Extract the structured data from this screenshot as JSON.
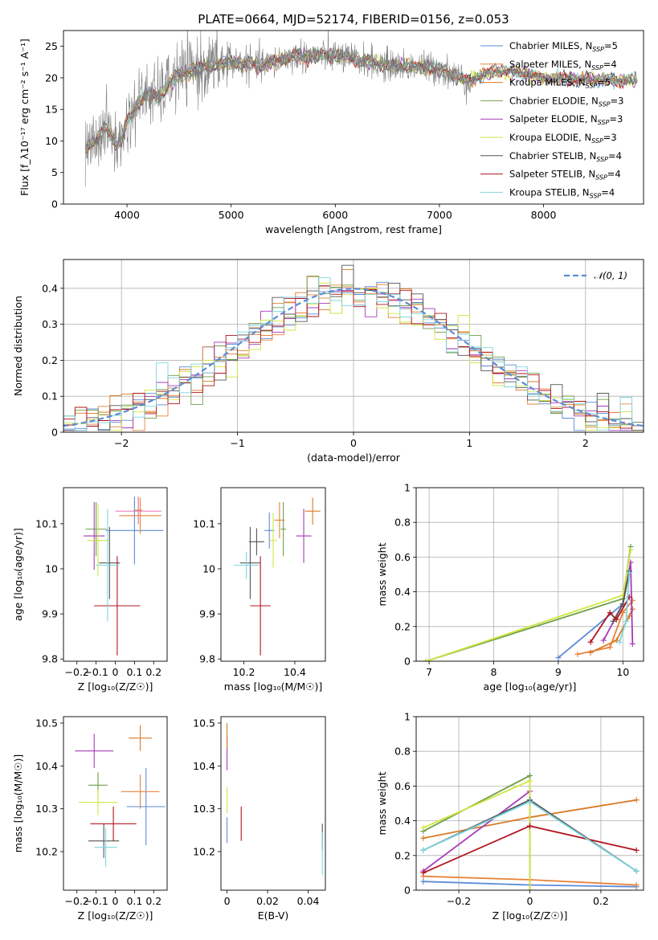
{
  "figure_title": "PLATE=0664, MJD=52174, FIBERID=0156, z=0.053",
  "colors": {
    "Chabrier MILES": "#5b8bd6",
    "Salpeter MILES": "#e8823a",
    "Kroupa MILES": "#d97a24",
    "Chabrier ELODIE": "#6f9e4a",
    "Salpeter ELODIE": "#a83ab8",
    "Kroupa ELODIE": "#cfe63f",
    "Chabrier STELIB": "#555555",
    "Salpeter STELIB": "#b0161e",
    "Kroupa STELIB": "#7fd6e0"
  },
  "chart_data": [
    {
      "id": "spectrum",
      "type": "line",
      "xlabel": "wavelength [Angstrom, rest frame]",
      "ylabel": "Flux [f_λ10⁻¹⁷ erg cm⁻² s⁻¹ A⁻¹]",
      "xlim": [
        3390,
        8960
      ],
      "ylim": [
        0,
        27.5
      ],
      "xticks": [
        4000,
        5000,
        6000,
        7000,
        8000
      ],
      "yticks": [
        0,
        5,
        10,
        15,
        20,
        25
      ],
      "legend_position": "upper right",
      "legend": [
        {
          "name": "Chabrier MILES",
          "nssp": "5"
        },
        {
          "name": "Salpeter MILES",
          "nssp": "4"
        },
        {
          "name": "Kroupa MILES",
          "nssp": "5"
        },
        {
          "name": "Chabrier ELODIE",
          "nssp": "3"
        },
        {
          "name": "Salpeter ELODIE",
          "nssp": "3"
        },
        {
          "name": "Kroupa ELODIE",
          "nssp": "3"
        },
        {
          "name": "Chabrier STELIB",
          "nssp": "4"
        },
        {
          "name": "Salpeter STELIB",
          "nssp": "4"
        },
        {
          "name": "Kroupa STELIB",
          "nssp": "4"
        }
      ],
      "continuum": {
        "wavelength": [
          3600,
          3700,
          3800,
          3900,
          3950,
          4000,
          4100,
          4200,
          4300,
          4400,
          4500,
          4700,
          5000,
          5300,
          5600,
          6000,
          6500,
          7000,
          7200,
          7300,
          7500,
          7700,
          8000,
          8300,
          8600,
          8900
        ],
        "flux": [
          9,
          10,
          12,
          9.5,
          10,
          13,
          16,
          17.5,
          17,
          19,
          20.5,
          21.5,
          22.5,
          22,
          23.5,
          23.5,
          22,
          21.5,
          20,
          19.5,
          21,
          21,
          20,
          19.8,
          19.7,
          19.5
        ]
      }
    },
    {
      "id": "residuals",
      "type": "histogram",
      "xlabel": "(data-model)/error",
      "ylabel": "Normed distribution",
      "xlim": [
        -2.5,
        2.5
      ],
      "ylim": [
        0,
        0.48
      ],
      "xticks": [
        -2,
        -1,
        0,
        1,
        2
      ],
      "yticks": [
        0.0,
        0.1,
        0.2,
        0.3,
        0.4
      ],
      "bin_width": 0.1,
      "grid": true,
      "legend_position": "upper right",
      "reference_curve": {
        "name": "𝒩(0, 1)",
        "mean": 0,
        "sigma": 1
      }
    },
    {
      "id": "age_vs_Z",
      "type": "errorbar",
      "xlabel": "Z [log₁₀(Z/Z☉)]",
      "ylabel": "age  [log₁₀(age/yr)]",
      "xlim": [
        -0.27,
        0.27
      ],
      "ylim": [
        9.795,
        10.18
      ],
      "xticks": [
        -0.2,
        -0.1,
        0.0,
        0.1,
        0.2
      ],
      "yticks": [
        9.8,
        9.9,
        10.0,
        10.1
      ],
      "points": [
        {
          "series": "Chabrier MILES",
          "x": 0.1,
          "xerr": 0.15,
          "y": 10.085,
          "yerr": 0.075
        },
        {
          "series": "Salpeter MILES",
          "x": 0.13,
          "xerr": 0.11,
          "y": 10.118,
          "yerr": 0.04
        },
        {
          "series": "Kroupa MILES",
          "x": 0.12,
          "xerr": 0.02,
          "y": 10.13,
          "yerr": 0.03
        },
        {
          "series": "Chabrier ELODIE",
          "x": -0.1,
          "xerr": 0.055,
          "y": 10.088,
          "yerr": 0.06
        },
        {
          "series": "Salpeter ELODIE",
          "x": -0.11,
          "xerr": 0.055,
          "y": 10.073,
          "yerr": 0.075
        },
        {
          "series": "Kroupa ELODIE",
          "x": -0.09,
          "xerr": 0.055,
          "y": 10.063,
          "yerr": 0.08
        },
        {
          "series": "Chabrier STELIB",
          "x": -0.03,
          "xerr": 0.055,
          "y": 10.013,
          "yerr": 0.08
        },
        {
          "series": "Salpeter STELIB",
          "x": 0.01,
          "xerr": 0.12,
          "y": 9.918,
          "yerr": 0.11
        },
        {
          "series": "Kroupa STELIB",
          "x": -0.04,
          "xerr": 0.06,
          "y": 10.008,
          "yerr": 0.125
        },
        {
          "series": "Kroupa MILES pink",
          "x": 0.12,
          "xerr": 0.12,
          "y": 10.128,
          "yerr": 0.03
        }
      ]
    },
    {
      "id": "age_vs_mass",
      "type": "errorbar",
      "xlabel": "mass [log₁₀(M/M☉)]",
      "ylabel": "",
      "xlim": [
        10.11,
        10.52
      ],
      "ylim": [
        9.795,
        10.18
      ],
      "xticks": [
        10.2,
        10.4
      ],
      "yticks": [
        9.8,
        9.9,
        10.0,
        10.1
      ],
      "points": [
        {
          "series": "Chabrier MILES",
          "x": 10.3,
          "xerr": 0.02,
          "y": 10.085,
          "yerr": 0.04
        },
        {
          "series": "Salpeter MILES",
          "x": 10.34,
          "xerr": 0.02,
          "y": 10.108,
          "yerr": 0.04
        },
        {
          "series": "Kroupa MILES",
          "x": 10.47,
          "xerr": 0.03,
          "y": 10.128,
          "yerr": 0.03
        },
        {
          "series": "Chabrier ELODIE",
          "x": 10.355,
          "xerr": 0.01,
          "y": 10.088,
          "yerr": 0.06
        },
        {
          "series": "Salpeter ELODIE",
          "x": 10.435,
          "xerr": 0.03,
          "y": 10.073,
          "yerr": 0.06
        },
        {
          "series": "Kroupa ELODIE",
          "x": 10.315,
          "xerr": 0.015,
          "y": 10.063,
          "yerr": 0.06
        },
        {
          "series": "Chabrier STELIB",
          "x": 10.225,
          "xerr": 0.04,
          "y": 10.013,
          "yerr": 0.08
        },
        {
          "series": "Salpeter STELIB",
          "x": 10.265,
          "xerr": 0.04,
          "y": 9.918,
          "yerr": 0.11
        },
        {
          "series": "Kroupa STELIB",
          "x": 10.21,
          "xerr": 0.05,
          "y": 10.008,
          "yerr": 0.03
        },
        {
          "series": "Kroupa STELIB dark",
          "x": 10.25,
          "xerr": 0.03,
          "y": 10.06,
          "yerr": 0.03
        }
      ]
    },
    {
      "id": "massweight_vs_age",
      "type": "line",
      "xlabel": "age  [log₁₀(age/yr)]",
      "ylabel": "mass weight",
      "xlim": [
        6.8,
        10.32
      ],
      "ylim": [
        0,
        1.0
      ],
      "xticks": [
        7,
        8,
        9,
        10
      ],
      "yticks": [
        0.0,
        0.2,
        0.4,
        0.6,
        0.8,
        1.0
      ],
      "grid": true,
      "series": [
        {
          "name": "Chabrier MILES",
          "x": [
            9.0,
            10.0,
            10.1
          ],
          "y": [
            0.02,
            0.33,
            0.52
          ]
        },
        {
          "name": "Salpeter MILES",
          "x": [
            9.3,
            9.8,
            10.0,
            10.15
          ],
          "y": [
            0.04,
            0.08,
            0.28,
            0.35
          ]
        },
        {
          "name": "Kroupa MILES",
          "x": [
            9.5,
            9.9,
            10.1,
            10.15
          ],
          "y": [
            0.05,
            0.12,
            0.26,
            0.3
          ]
        },
        {
          "name": "Chabrier ELODIE",
          "x": [
            6.95,
            10.0,
            10.12
          ],
          "y": [
            0.0,
            0.36,
            0.66
          ]
        },
        {
          "name": "Salpeter ELODIE",
          "x": [
            9.7,
            10.0,
            10.12,
            10.15
          ],
          "y": [
            0.12,
            0.33,
            0.57,
            0.1
          ]
        },
        {
          "name": "Kroupa ELODIE",
          "x": [
            6.95,
            10.0,
            10.12
          ],
          "y": [
            0.0,
            0.38,
            0.64
          ]
        },
        {
          "name": "Chabrier STELIB",
          "x": [
            9.85,
            10.0,
            10.1
          ],
          "y": [
            0.23,
            0.33,
            0.52
          ]
        },
        {
          "name": "Salpeter STELIB",
          "x": [
            9.5,
            9.8,
            9.9,
            10.1
          ],
          "y": [
            0.11,
            0.28,
            0.24,
            0.37
          ]
        },
        {
          "name": "Kroupa STELIB",
          "x": [
            9.95,
            10.05,
            10.1
          ],
          "y": [
            0.11,
            0.23,
            0.51
          ]
        }
      ]
    },
    {
      "id": "mass_vs_Z",
      "type": "errorbar",
      "xlabel": "Z [log₁₀(Z/Z☉)]",
      "ylabel": "mass [log₁₀(M/M☉)]",
      "xlim": [
        -0.27,
        0.27
      ],
      "ylim": [
        10.11,
        10.515
      ],
      "xticks": [
        -0.2,
        -0.1,
        0.0,
        0.1,
        0.2
      ],
      "yticks": [
        10.2,
        10.3,
        10.4,
        10.5
      ],
      "points": [
        {
          "series": "Chabrier MILES",
          "x": 0.16,
          "xerr": 0.1,
          "y": 10.305,
          "yerr": 0.09
        },
        {
          "series": "Salpeter MILES",
          "x": 0.13,
          "xerr": 0.1,
          "y": 10.34,
          "yerr": 0.04
        },
        {
          "series": "Kroupa MILES",
          "x": 0.13,
          "xerr": 0.06,
          "y": 10.465,
          "yerr": 0.03
        },
        {
          "series": "Chabrier ELODIE",
          "x": -0.09,
          "xerr": 0.05,
          "y": 10.355,
          "yerr": 0.03
        },
        {
          "series": "Salpeter ELODIE",
          "x": -0.11,
          "xerr": 0.1,
          "y": 10.435,
          "yerr": 0.04
        },
        {
          "series": "Kroupa ELODIE",
          "x": -0.09,
          "xerr": 0.1,
          "y": 10.315,
          "yerr": 0.03
        },
        {
          "series": "Chabrier STELIB",
          "x": -0.06,
          "xerr": 0.08,
          "y": 10.225,
          "yerr": 0.04
        },
        {
          "series": "Salpeter STELIB",
          "x": -0.01,
          "xerr": 0.12,
          "y": 10.265,
          "yerr": 0.04
        },
        {
          "series": "Kroupa STELIB",
          "x": -0.05,
          "xerr": 0.06,
          "y": 10.21,
          "yerr": 0.045
        }
      ]
    },
    {
      "id": "mass_vs_ebv",
      "type": "errorbar",
      "xlabel": "E(B-V)",
      "ylabel": "",
      "xlim": [
        -0.003,
        0.0485
      ],
      "ylim": [
        10.11,
        10.515
      ],
      "xticks": [
        0.0,
        0.02,
        0.04
      ],
      "yticks": [
        10.2,
        10.3,
        10.4,
        10.5
      ],
      "points": [
        {
          "series": "Chabrier MILES",
          "x": 0.0,
          "xerr": 0.0,
          "y": 10.25,
          "yerr": 0.03
        },
        {
          "series": "Salpeter ELODIE",
          "x": 0.0,
          "xerr": 0.0,
          "y": 10.43,
          "yerr": 0.04
        },
        {
          "series": "Kroupa MILES",
          "x": 0.0,
          "xerr": 0.0,
          "y": 10.47,
          "yerr": 0.03
        },
        {
          "series": "Kroupa ELODIE",
          "x": 0.0,
          "xerr": 0.0,
          "y": 10.32,
          "yerr": 0.03
        },
        {
          "series": "Salpeter STELIB",
          "x": 0.007,
          "xerr": 0.0,
          "y": 10.265,
          "yerr": 0.04
        },
        {
          "series": "Chabrier STELIB",
          "x": 0.047,
          "xerr": 0.0,
          "y": 10.235,
          "yerr": 0.03
        },
        {
          "series": "Kroupa STELIB",
          "x": 0.047,
          "xerr": 0.0,
          "y": 10.195,
          "yerr": 0.05
        }
      ]
    },
    {
      "id": "massweight_vs_Z",
      "type": "line",
      "xlabel": "Z [log₁₀(Z/Z☉)]",
      "ylabel": "mass weight",
      "xlim": [
        -0.32,
        0.32
      ],
      "ylim": [
        0,
        1.0
      ],
      "xticks": [
        -0.2,
        0.0,
        0.2
      ],
      "yticks": [
        0.0,
        0.2,
        0.4,
        0.6,
        0.8,
        1.0
      ],
      "grid": true,
      "series": [
        {
          "name": "Chabrier MILES",
          "x": [
            -0.3,
            0.0,
            0.3
          ],
          "y": [
            0.05,
            0.03,
            0.02
          ]
        },
        {
          "name": "Salpeter MILES",
          "x": [
            -0.3,
            0.0,
            0.3
          ],
          "y": [
            0.08,
            0.06,
            0.03
          ]
        },
        {
          "name": "Kroupa MILES",
          "x": [
            -0.3,
            0.0,
            0.3
          ],
          "y": [
            0.3,
            0.42,
            0.52
          ]
        },
        {
          "name": "Chabrier ELODIE",
          "x": [
            -0.3,
            0.0,
            0.0
          ],
          "y": [
            0.34,
            0.66,
            0.0
          ]
        },
        {
          "name": "Salpeter ELODIE",
          "x": [
            -0.3,
            0.0,
            0.0
          ],
          "y": [
            0.11,
            0.57,
            0.0
          ]
        },
        {
          "name": "Kroupa ELODIE",
          "x": [
            -0.3,
            0.0,
            0.0
          ],
          "y": [
            0.36,
            0.63,
            0.0
          ]
        },
        {
          "name": "Chabrier STELIB",
          "x": [
            -0.3,
            0.0,
            0.3
          ],
          "y": [
            0.23,
            0.52,
            0.11
          ]
        },
        {
          "name": "Salpeter STELIB",
          "x": [
            -0.3,
            0.0,
            0.3
          ],
          "y": [
            0.1,
            0.37,
            0.23
          ]
        },
        {
          "name": "Kroupa STELIB",
          "x": [
            -0.3,
            0.0,
            0.3
          ],
          "y": [
            0.23,
            0.51,
            0.11
          ]
        }
      ]
    }
  ]
}
